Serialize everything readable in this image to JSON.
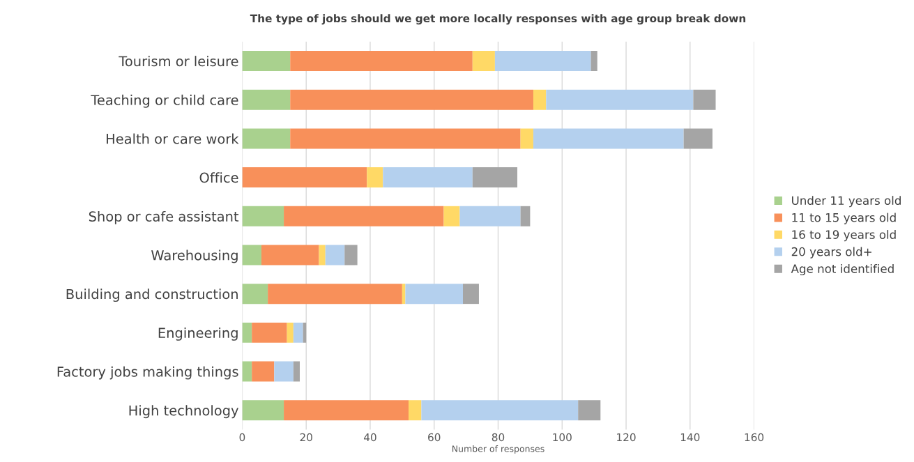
{
  "chart_data": {
    "type": "bar",
    "orientation": "horizontal",
    "stacked": true,
    "title": "The type of jobs should we get more locally responses with age group break down",
    "xlabel": "Number of responses",
    "categories": [
      "Tourism or leisure",
      "Teaching or child care",
      "Health or care work",
      "Office",
      "Shop or cafe assistant",
      "Warehousing",
      "Building and construction",
      "Engineering",
      "Factory jobs making things",
      "High technology"
    ],
    "series": [
      {
        "name": "Under 11 years old",
        "color": "#a9d18e",
        "values": [
          15,
          15,
          15,
          0,
          13,
          6,
          8,
          3,
          3,
          13
        ]
      },
      {
        "name": "11 to 15 years old",
        "color": "#f8905a",
        "values": [
          57,
          76,
          72,
          39,
          50,
          18,
          42,
          11,
          7,
          39
        ]
      },
      {
        "name": "16 to 19 years old",
        "color": "#ffd966",
        "values": [
          7,
          4,
          4,
          5,
          5,
          2,
          1,
          2,
          0,
          4
        ]
      },
      {
        "name": "20 years old+",
        "color": "#b4d0ee",
        "values": [
          30,
          46,
          47,
          28,
          19,
          6,
          18,
          3,
          6,
          49
        ]
      },
      {
        "name": "Age not identified",
        "color": "#a5a5a5",
        "values": [
          2,
          7,
          9,
          14,
          3,
          4,
          5,
          1,
          2,
          7
        ]
      }
    ],
    "xlim": [
      0,
      160
    ],
    "xticks": [
      0,
      20,
      40,
      60,
      80,
      100,
      120,
      140,
      160
    ],
    "grid": "x",
    "legend": "right"
  }
}
